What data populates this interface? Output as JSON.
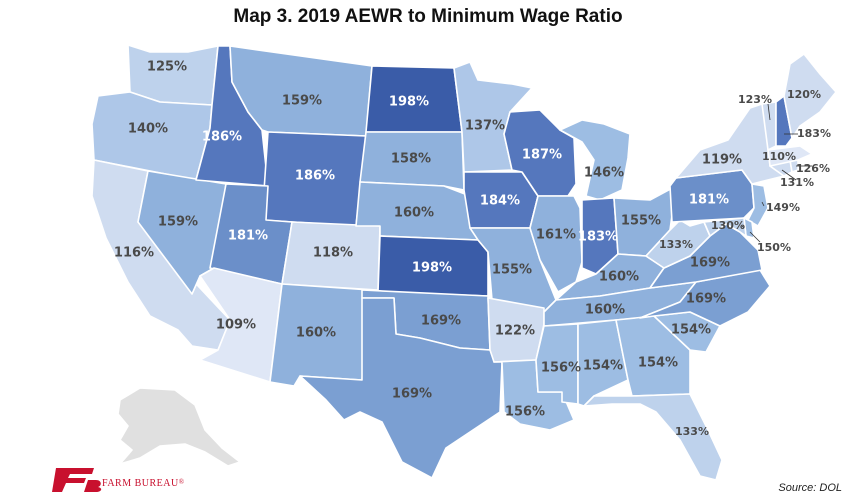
{
  "title": "Map 3. 2019 AEWR to Minimum Wage Ratio",
  "source": "Source: DOL",
  "logo": {
    "text": "FARM BUREAU",
    "mark": "®"
  },
  "colors": {
    "r105": "#dfe7f6",
    "r115": "#cfdcf0",
    "r125": "#bed2ec",
    "r135": "#aec7e8",
    "r145": "#9dbde3",
    "r155": "#8fb1dc",
    "r165": "#7b9fd2",
    "r175": "#6b8fc9",
    "r185": "#5577bd",
    "r195": "#3a5ca8",
    "alaska": "#e0e0e0",
    "logo": "#c8102e"
  },
  "states": {
    "WA": "125%",
    "OR": "140%",
    "CA": "116%",
    "NV": "159%",
    "ID": "186%",
    "MT": "159%",
    "WY": "186%",
    "UT": "181%",
    "AZ": "109%",
    "CO": "118%",
    "NM": "160%",
    "ND": "198%",
    "SD": "158%",
    "NE": "160%",
    "KS": "198%",
    "OK": "169%",
    "TX": "169%",
    "MN": "137%",
    "IA": "184%",
    "MO": "155%",
    "AR": "122%",
    "LA": "156%",
    "WI": "187%",
    "IL": "161%",
    "MI": "146%",
    "IN": "183%",
    "OH": "155%",
    "KY": "160%",
    "TN": "160%",
    "MS": "156%",
    "AL": "154%",
    "GA": "154%",
    "FL": "133%",
    "SC": "154%",
    "NC": "169%",
    "VA": "169%",
    "WV": "133%",
    "PA": "181%",
    "NY": "119%",
    "VT": "123%",
    "NH": "183%",
    "ME": "120%",
    "MA": "110%",
    "RI": "126%",
    "CT": "131%",
    "NJ": "149%",
    "DE": "150%",
    "MD": "130%"
  }
}
